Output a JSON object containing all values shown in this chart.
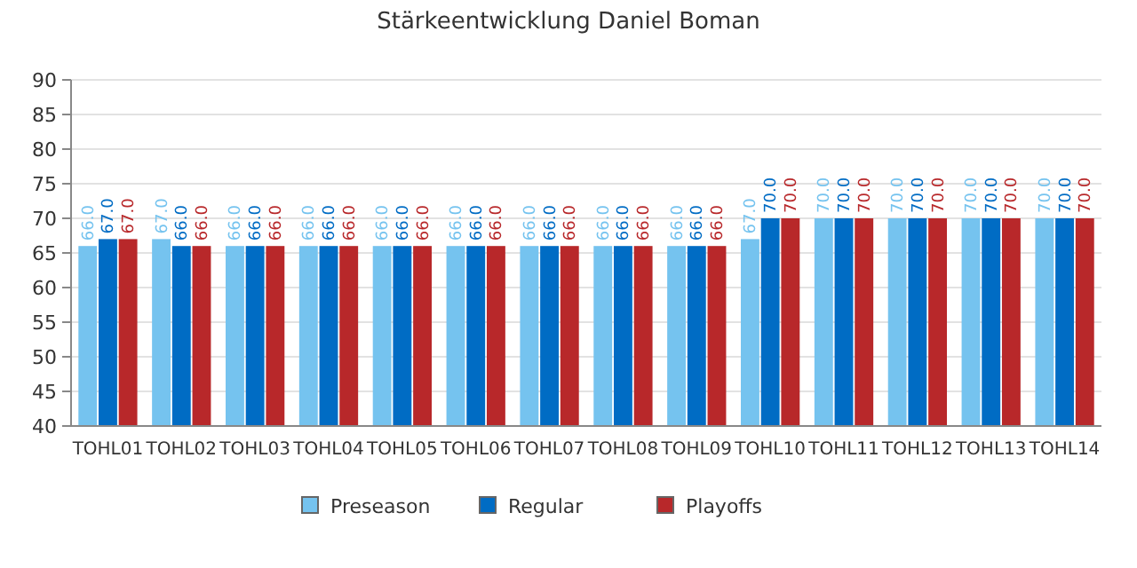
{
  "chart_data": {
    "type": "bar",
    "title": "Stärkeentwicklung Daniel Boman",
    "categories": [
      "TOHL01",
      "TOHL02",
      "TOHL03",
      "TOHL04",
      "TOHL05",
      "TOHL06",
      "TOHL07",
      "TOHL08",
      "TOHL09",
      "TOHL10",
      "TOHL11",
      "TOHL12",
      "TOHL13",
      "TOHL14"
    ],
    "series": [
      {
        "name": "Preseason",
        "color": "#75c3ef",
        "values": [
          66,
          67,
          66,
          66,
          66,
          66,
          66,
          66,
          66,
          67,
          70,
          70,
          70,
          70
        ],
        "value_labels": [
          "66.0",
          "67.0",
          "66.0",
          "66.0",
          "66.0",
          "66.0",
          "66.0",
          "66.0",
          "66.0",
          "67.0",
          "70.0",
          "70.0",
          "70.0",
          "70.0"
        ]
      },
      {
        "name": "Regular",
        "color": "#006cc4",
        "values": [
          67,
          66,
          66,
          66,
          66,
          66,
          66,
          66,
          66,
          70,
          70,
          70,
          70,
          70
        ],
        "value_labels": [
          "67.0",
          "66.0",
          "66.0",
          "66.0",
          "66.0",
          "66.0",
          "66.0",
          "66.0",
          "66.0",
          "70.0",
          "70.0",
          "70.0",
          "70.0",
          "70.0"
        ]
      },
      {
        "name": "Playoffs",
        "color": "#b8282a",
        "values": [
          67,
          66,
          66,
          66,
          66,
          66,
          66,
          66,
          66,
          70,
          70,
          70,
          70,
          70
        ],
        "value_labels": [
          "67.0",
          "66.0",
          "66.0",
          "66.0",
          "66.0",
          "66.0",
          "66.0",
          "66.0",
          "66.0",
          "70.0",
          "70.0",
          "70.0",
          "70.0",
          "70.0"
        ]
      }
    ],
    "ylim": [
      40,
      90
    ],
    "yticks": [
      40,
      45,
      50,
      55,
      60,
      65,
      70,
      75,
      80,
      85,
      90
    ],
    "grid": "y",
    "legend": "bottom"
  }
}
